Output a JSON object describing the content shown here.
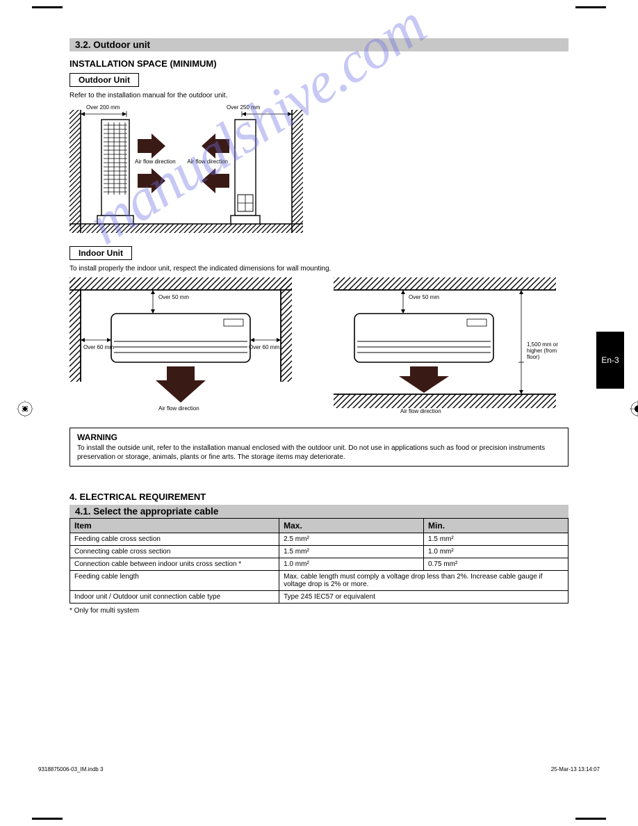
{
  "crop_color": "#000000",
  "page_tab": {
    "label": "En-3",
    "bg": "#000000",
    "fg": "#ffffff"
  },
  "watermark": "manualshive.com",
  "section1": {
    "bar": "3.2. Outdoor unit",
    "subhead": "INSTALLATION SPACE (MINIMUM)",
    "outdoor": {
      "title": "Outdoor Unit",
      "note": "Refer to the installation manual for the outdoor unit.",
      "d1": {
        "top": "Over 200 mm",
        "mid": "Air flow direction"
      },
      "d2": {
        "top": "Over 250 mm",
        "mid": "Air flow direction"
      }
    },
    "indoor": {
      "title": "Indoor Unit",
      "note": "To install properly the indoor unit, respect the indicated dimensions for wall mounting.",
      "d1": {
        "top": "Over 50 mm",
        "left": "Over 60 mm",
        "right": "Over 60 mm",
        "bottom": "Air flow direction"
      },
      "d2": {
        "top": "Over 50 mm",
        "bottom_right": "1,500 mm or higher (from floor)",
        "bottom": "Air flow direction"
      }
    }
  },
  "warning": {
    "title": "WARNING",
    "text": "To install the outside unit, refer to the installation manual enclosed with the outdoor unit. Do not use in applications such as food or precision instruments preservation or storage, animals, plants or fine arts. The storage items may deteriorate."
  },
  "section2": {
    "title_line": "4. ELECTRICAL REQUIREMENT",
    "bar": "4.1. Select the appropriate cable",
    "table": {
      "rows": [
        [
          "Item",
          "Max.",
          "Min."
        ],
        [
          "Feeding cable cross section",
          "2.5 mm²",
          "1.5 mm²"
        ],
        [
          "Connecting cable cross section",
          "1.5 mm²",
          "1.0 mm²"
        ],
        [
          "Connection cable between indoor units cross section *",
          "1.0 mm²",
          "0.75 mm²"
        ],
        [
          "Feeding cable length",
          "Max. cable length must comply a voltage drop less than 2%. Increase cable gauge if voltage drop is 2% or more.",
          ""
        ],
        [
          "Indoor unit / Outdoor unit connection cable type",
          "Type 245 IEC57 or equivalent",
          ""
        ]
      ],
      "spans": [
        [
          1,
          1,
          1
        ],
        [
          1,
          1,
          1
        ],
        [
          1,
          1,
          1
        ],
        [
          1,
          1,
          1
        ],
        [
          1,
          2,
          0
        ],
        [
          1,
          2,
          0
        ]
      ]
    },
    "footnote": "* Only for multi system"
  },
  "print_footer": "9318875006-03_IM.indb   3",
  "print_timestamp": "25-Mar-13   13:14:07"
}
